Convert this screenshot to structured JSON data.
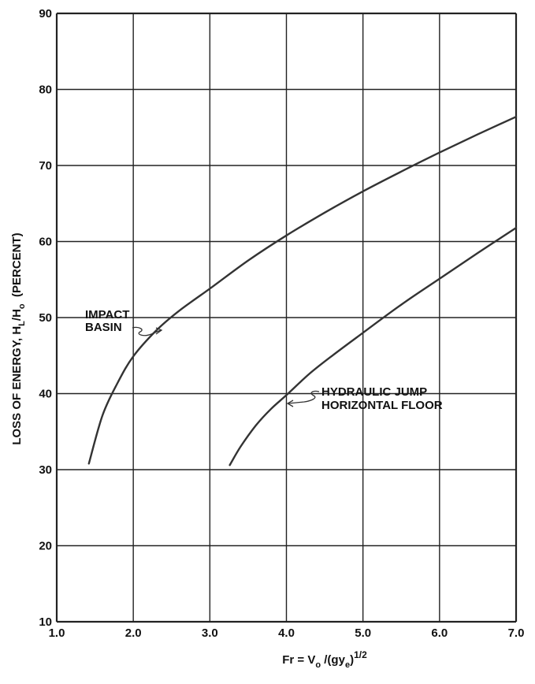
{
  "chart_data": {
    "type": "line",
    "title": "",
    "xlabel": {
      "prefix": "Fr = V",
      "sub1": "o",
      "mid": " /(gy",
      "sub2": "e",
      "close": ")",
      "sup": "1/2"
    },
    "ylabel": {
      "prefix": "LOSS OF ENERGY, H",
      "sub1": "L",
      "mid": "/H",
      "sub2": "o",
      "suffix": "  (PERCENT)"
    },
    "xlim": [
      1.0,
      7.0
    ],
    "ylim": [
      10,
      90
    ],
    "x_ticks": [
      1.0,
      2.0,
      3.0,
      4.0,
      5.0,
      6.0,
      7.0
    ],
    "x_tick_labels": [
      "1.0",
      "2.0",
      "3.0",
      "4.0",
      "5.0",
      "6.0",
      "7.0"
    ],
    "y_ticks": [
      10,
      20,
      30,
      40,
      50,
      60,
      70,
      80,
      90
    ],
    "y_tick_labels": [
      "10",
      "20",
      "30",
      "40",
      "50",
      "60",
      "70",
      "80",
      "90"
    ],
    "grid": true,
    "line_color": "#333333",
    "series": [
      {
        "name": "IMPACT BASIN",
        "label_lines": [
          "IMPACT",
          "BASIN"
        ],
        "x": [
          1.42,
          1.6,
          1.8,
          2.0,
          2.3,
          2.6,
          3.0,
          3.5,
          4.0,
          4.5,
          5.0,
          5.5,
          6.0,
          6.5,
          7.0
        ],
        "y": [
          30.8,
          37.2,
          41.5,
          44.9,
          48.3,
          50.9,
          53.8,
          57.5,
          60.8,
          63.8,
          66.6,
          69.2,
          71.7,
          74.1,
          76.4
        ]
      },
      {
        "name": "HYDRAULIC JUMP HORIZONTAL FLOOR",
        "label_lines": [
          "HYDRAULIC JUMP",
          "HORIZONTAL FLOOR"
        ],
        "x": [
          3.26,
          3.4,
          3.6,
          3.8,
          4.0,
          4.3,
          4.6,
          5.0,
          5.5,
          6.0,
          6.5,
          7.0
        ],
        "y": [
          30.6,
          33.0,
          35.8,
          38.0,
          39.8,
          42.6,
          45.0,
          48.0,
          51.7,
          55.1,
          58.5,
          61.8
        ]
      }
    ]
  }
}
